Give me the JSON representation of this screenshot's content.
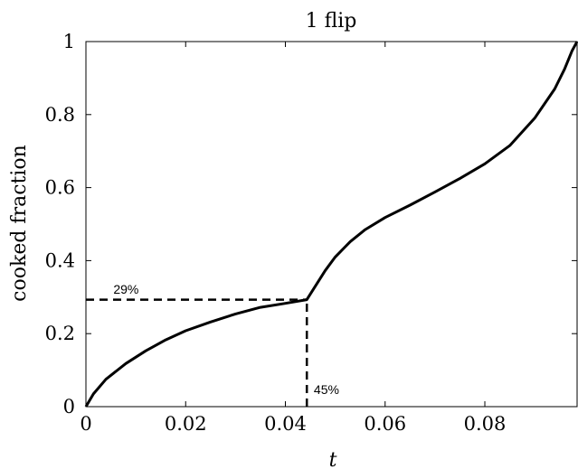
{
  "chart_data": {
    "type": "line",
    "title": "1 flip",
    "xlabel": "t",
    "ylabel": "cooked fraction",
    "xlim": [
      0,
      0.0985
    ],
    "ylim": [
      0,
      1
    ],
    "x_ticks": [
      0,
      0.02,
      0.04,
      0.06,
      0.08
    ],
    "x_tick_labels": [
      "0",
      "0.02",
      "0.04",
      "0.06",
      "0.08"
    ],
    "y_ticks": [
      0,
      0.2,
      0.4,
      0.6,
      0.8,
      1
    ],
    "y_tick_labels": [
      "0",
      "0.2",
      "0.4",
      "0.6",
      "0.8",
      "1"
    ],
    "grid": false,
    "series": [
      {
        "color": "#000000",
        "x": [
          0,
          0.0015,
          0.004,
          0.008,
          0.012,
          0.016,
          0.02,
          0.025,
          0.03,
          0.035,
          0.04,
          0.0443,
          0.046,
          0.048,
          0.05,
          0.053,
          0.056,
          0.06,
          0.065,
          0.07,
          0.075,
          0.08,
          0.085,
          0.09,
          0.094,
          0.096,
          0.0975,
          0.0985
        ],
        "y": [
          0,
          0.035,
          0.075,
          0.118,
          0.153,
          0.183,
          0.208,
          0.232,
          0.254,
          0.272,
          0.283,
          0.293,
          0.33,
          0.373,
          0.41,
          0.452,
          0.485,
          0.518,
          0.552,
          0.588,
          0.625,
          0.665,
          0.715,
          0.79,
          0.87,
          0.925,
          0.975,
          1.0
        ]
      }
    ],
    "reference_lines": [
      {
        "style": "dashed",
        "from": [
          0,
          0.293
        ],
        "to": [
          0.0443,
          0.293
        ]
      },
      {
        "style": "dashed",
        "from": [
          0.0443,
          0
        ],
        "to": [
          0.0443,
          0.293
        ]
      }
    ],
    "annotations": [
      {
        "text": "29%",
        "x": 0.0055,
        "y": 0.31
      },
      {
        "text": "45%",
        "x": 0.0457,
        "y": 0.035
      }
    ]
  }
}
